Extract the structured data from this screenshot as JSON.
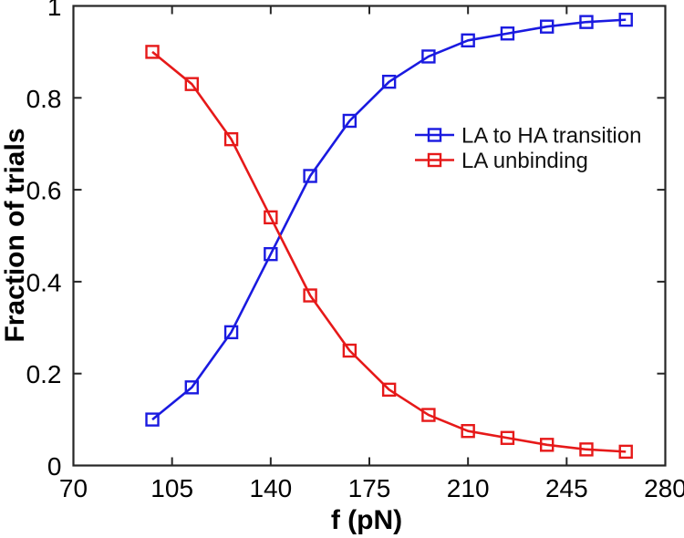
{
  "figure": {
    "background": "#ffffff",
    "frame_color": "#262626",
    "tick_label_color": "#000000",
    "axis_label_color": "#000000",
    "legend_text_color": "#111111"
  },
  "chart_data": {
    "type": "line",
    "title": "",
    "xlabel": "f (pN)",
    "ylabel": "Fraction of trials",
    "xlim": [
      70,
      280
    ],
    "ylim": [
      0,
      1
    ],
    "grid": false,
    "legend_position": "inside-right-upper-middle",
    "legend_border": false,
    "x_ticks": [
      70,
      105,
      140,
      175,
      210,
      245,
      280
    ],
    "x_tick_labels": [
      "70",
      "105",
      "140",
      "175",
      "210",
      "245",
      "280"
    ],
    "y_ticks": [
      0,
      0.2,
      0.4,
      0.6,
      0.8,
      1
    ],
    "y_tick_labels": [
      "0",
      "0.2",
      "0.4",
      "0.6",
      "0.8",
      "1"
    ],
    "x": [
      98,
      112,
      126,
      140,
      154,
      168,
      182,
      196,
      210,
      224,
      238,
      252,
      266
    ],
    "series": [
      {
        "name": "LA to HA transition",
        "color": "#1a1ae0",
        "marker": "open-square",
        "values": [
          0.1,
          0.17,
          0.29,
          0.46,
          0.63,
          0.75,
          0.835,
          0.89,
          0.925,
          0.94,
          0.955,
          0.965,
          0.97
        ]
      },
      {
        "name": "LA unbinding",
        "color": "#e61919",
        "marker": "open-square",
        "values": [
          0.9,
          0.83,
          0.71,
          0.54,
          0.37,
          0.25,
          0.165,
          0.11,
          0.075,
          0.06,
          0.045,
          0.035,
          0.03
        ]
      }
    ]
  }
}
